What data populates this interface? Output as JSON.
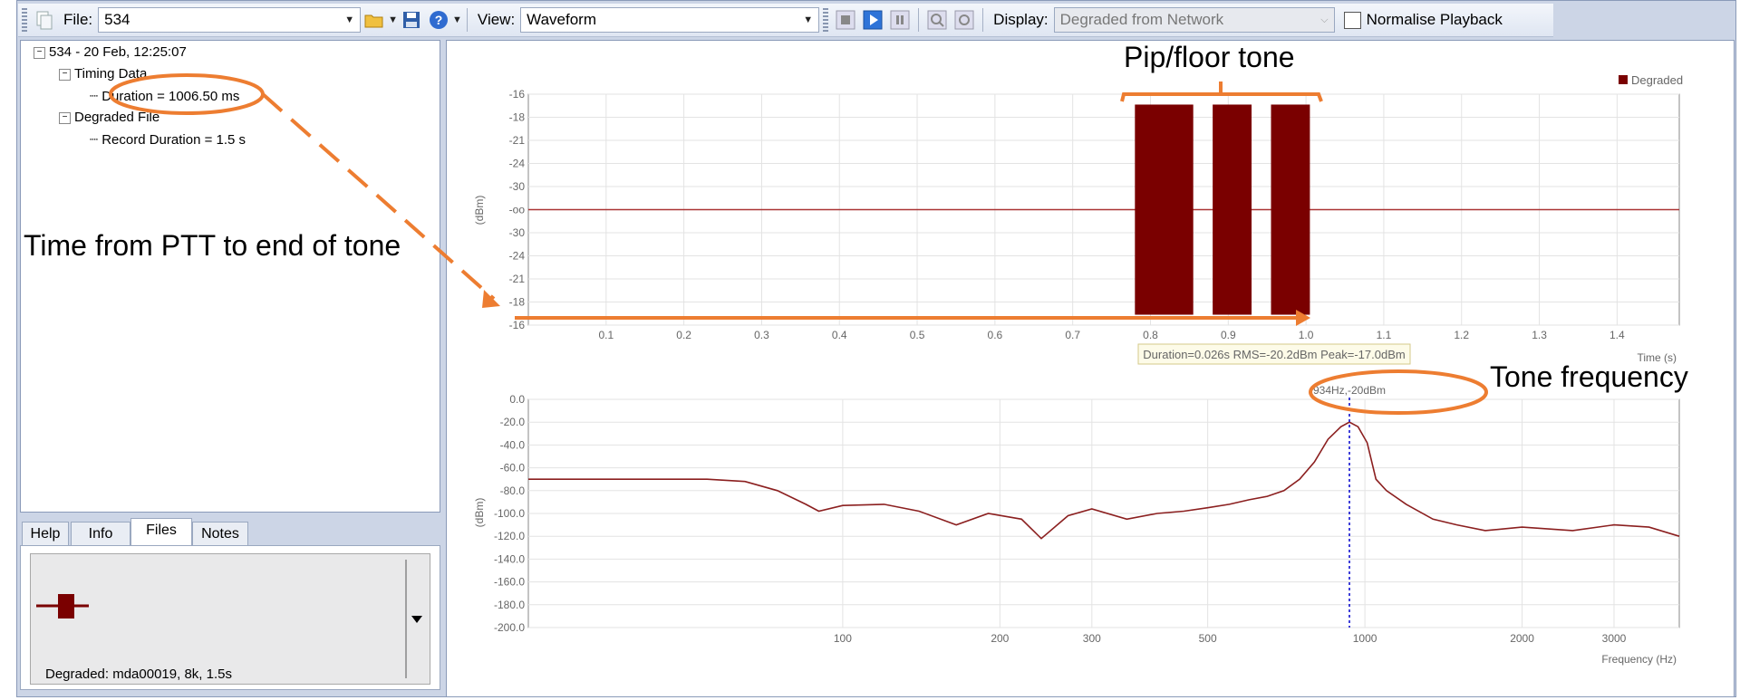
{
  "toolbar": {
    "file_label": "File:",
    "file_value": "534",
    "view_label": "View:",
    "view_value": "Waveform",
    "display_label": "Display:",
    "display_value": "Degraded from Network",
    "normalise_label": "Normalise Playback",
    "normalise_checked": false
  },
  "tree": {
    "root": "534 - 20 Feb, 12:25:07",
    "timing_node": "Timing Data",
    "duration_item": "Duration = 1006.50 ms",
    "degraded_node": "Degraded File",
    "record_item": "Record Duration = 1.5 s"
  },
  "tabs": [
    {
      "label": "Help"
    },
    {
      "label": "Info"
    },
    {
      "label": "Files"
    },
    {
      "label": "Notes"
    }
  ],
  "active_tab": "Files",
  "files_panel": {
    "caption": "Degraded: mda00019, 8k, 1.5s"
  },
  "annotations": {
    "pip_floor_tone": "Pip/floor tone",
    "time_from_ptt": "Time from PTT to end of tone",
    "tone_frequency": "Tone frequency"
  },
  "colors": {
    "series": "#7a0000",
    "annotation": "#ed7d31",
    "cursor": "#0000cc"
  },
  "chart_data": [
    {
      "type": "line",
      "name": "waveform",
      "legend": "Degraded",
      "xlabel": "Time (s)",
      "ylabel": "(dBm)",
      "xlim": [
        0,
        1.48
      ],
      "x_ticks": [
        "0.1",
        "0.2",
        "0.3",
        "0.4",
        "0.5",
        "0.6",
        "0.7",
        "0.8",
        "0.9",
        "1.0",
        "1.1",
        "1.2",
        "1.3",
        "1.4"
      ],
      "y_tick_labels": [
        "-16",
        "-18",
        "-21",
        "-24",
        "-30",
        "-oo",
        "-30",
        "-24",
        "-21",
        "-18",
        "-16"
      ],
      "bursts": [
        [
          0.78,
          0.855
        ],
        [
          0.88,
          0.93
        ],
        [
          0.955,
          1.005
        ]
      ],
      "baseline": "-oo",
      "measure_label": "Duration=0.026s  RMS=-20.2dBm  Peak=-17.0dBm",
      "grid": true
    },
    {
      "type": "line",
      "name": "spectrum",
      "xlabel": "Frequency (Hz)",
      "ylabel": "(dBm)",
      "xscale": "log",
      "x_ticks": [
        100,
        200,
        300,
        500,
        1000,
        2000,
        3000
      ],
      "xlim": [
        25,
        4000
      ],
      "ylim": [
        -200,
        0
      ],
      "y_ticks": [
        "0.0",
        "-20.0",
        "-40.0",
        "-60.0",
        "-80.0",
        "-100.0",
        "-120.0",
        "-140.0",
        "-160.0",
        "-180.0",
        "-200.0"
      ],
      "peak_label": "934Hz,-20dBm",
      "peak": {
        "x": 934,
        "y": -20
      },
      "series_points": [
        [
          25,
          -70
        ],
        [
          40,
          -70
        ],
        [
          55,
          -70
        ],
        [
          65,
          -72
        ],
        [
          75,
          -80
        ],
        [
          85,
          -92
        ],
        [
          90,
          -98
        ],
        [
          100,
          -93
        ],
        [
          120,
          -92
        ],
        [
          140,
          -98
        ],
        [
          165,
          -110
        ],
        [
          190,
          -100
        ],
        [
          220,
          -105
        ],
        [
          240,
          -122
        ],
        [
          270,
          -102
        ],
        [
          300,
          -96
        ],
        [
          350,
          -105
        ],
        [
          400,
          -100
        ],
        [
          450,
          -98
        ],
        [
          500,
          -95
        ],
        [
          550,
          -92
        ],
        [
          600,
          -88
        ],
        [
          650,
          -85
        ],
        [
          700,
          -80
        ],
        [
          750,
          -70
        ],
        [
          800,
          -55
        ],
        [
          850,
          -35
        ],
        [
          900,
          -24
        ],
        [
          934,
          -20
        ],
        [
          970,
          -24
        ],
        [
          1010,
          -38
        ],
        [
          1050,
          -70
        ],
        [
          1100,
          -80
        ],
        [
          1200,
          -92
        ],
        [
          1350,
          -105
        ],
        [
          1500,
          -110
        ],
        [
          1700,
          -115
        ],
        [
          2000,
          -112
        ],
        [
          2500,
          -115
        ],
        [
          3000,
          -110
        ],
        [
          3500,
          -112
        ],
        [
          4000,
          -120
        ]
      ]
    }
  ]
}
